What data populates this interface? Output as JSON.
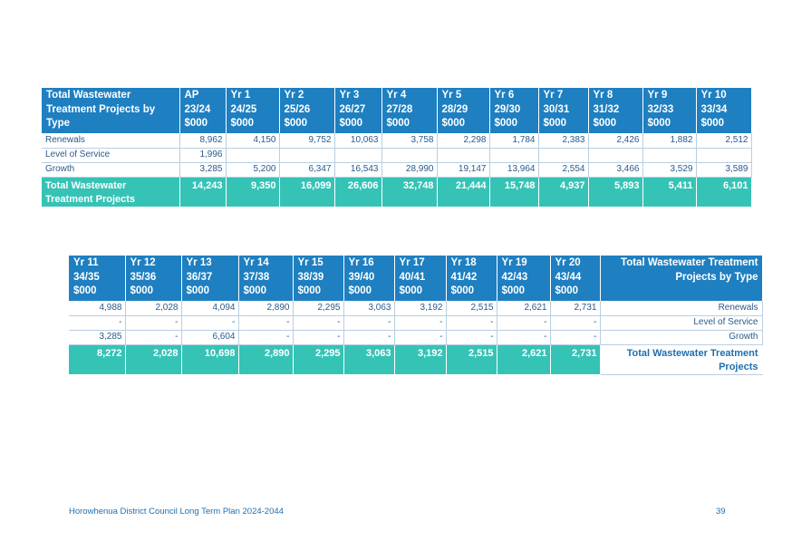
{
  "table1": {
    "header": [
      "Total Wastewater Treatment Projects by Type",
      "AP 23/24 $000",
      "Yr 1 24/25 $000",
      "Yr 2 25/26 $000",
      "Yr 3 26/27 $000",
      "Yr 4 27/28 $000",
      "Yr 5 28/29 $000",
      "Yr 6 29/30 $000",
      "Yr 7 30/31 $000",
      "Yr 8 31/32 $000",
      "Yr 9 32/33 $000",
      "Yr 10 33/34 $000"
    ],
    "rows": [
      {
        "label": "Renewals",
        "values": [
          "8,962",
          "4,150",
          "9,752",
          "10,063",
          "3,758",
          "2,298",
          "1,784",
          "2,383",
          "2,426",
          "1,882",
          "2,512"
        ]
      },
      {
        "label": "Level of Service",
        "values": [
          "1,996",
          "",
          "",
          "",
          "",
          "",
          "",
          "",
          "",
          "",
          ""
        ]
      },
      {
        "label": "Growth",
        "values": [
          "3,285",
          "5,200",
          "6,347",
          "16,543",
          "28,990",
          "19,147",
          "13,964",
          "2,554",
          "3,466",
          "3,529",
          "3,589"
        ]
      }
    ],
    "total": {
      "label": "Total Wastewater Treatment Projects",
      "values": [
        "14,243",
        "9,350",
        "16,099",
        "26,606",
        "32,748",
        "21,444",
        "15,748",
        "4,937",
        "5,893",
        "5,411",
        "6,101"
      ]
    }
  },
  "table2": {
    "header": [
      "Yr 11 34/35 $000",
      "Yr 12 35/36 $000",
      "Yr 13 36/37 $000",
      "Yr 14 37/38 $000",
      "Yr 15 38/39 $000",
      "Yr 16 39/40 $000",
      "Yr 17 40/41 $000",
      "Yr 18 41/42 $000",
      "Yr 19 42/43 $000",
      "Yr 20 43/44 $000",
      "Total Wastewater Treatment Projects by Type"
    ],
    "rows": [
      {
        "label": "Renewals",
        "values": [
          "4,988",
          "2,028",
          "4,094",
          "2,890",
          "2,295",
          "3,063",
          "3,192",
          "2,515",
          "2,621",
          "2,731"
        ]
      },
      {
        "label": "Level of Service",
        "values": [
          "-",
          "-",
          "-",
          "-",
          "-",
          "-",
          "-",
          "-",
          "-",
          "-"
        ]
      },
      {
        "label": "Growth",
        "values": [
          "3,285",
          "-",
          "6,604",
          "-",
          "-",
          "-",
          "-",
          "-",
          "-",
          "-"
        ]
      }
    ],
    "total": {
      "label": "Total Wastewater Treatment Projects",
      "values": [
        "8,272",
        "2,028",
        "10,698",
        "2,890",
        "2,295",
        "3,063",
        "3,192",
        "2,515",
        "2,621",
        "2,731"
      ]
    }
  },
  "footer": {
    "title": "Horowhenua District Council Long Term Plan 2024-2044",
    "page": "39"
  },
  "colors": {
    "header_bg": "#1e7fc1",
    "total_bg": "#35c3b6",
    "text": "#2a5a8a"
  }
}
